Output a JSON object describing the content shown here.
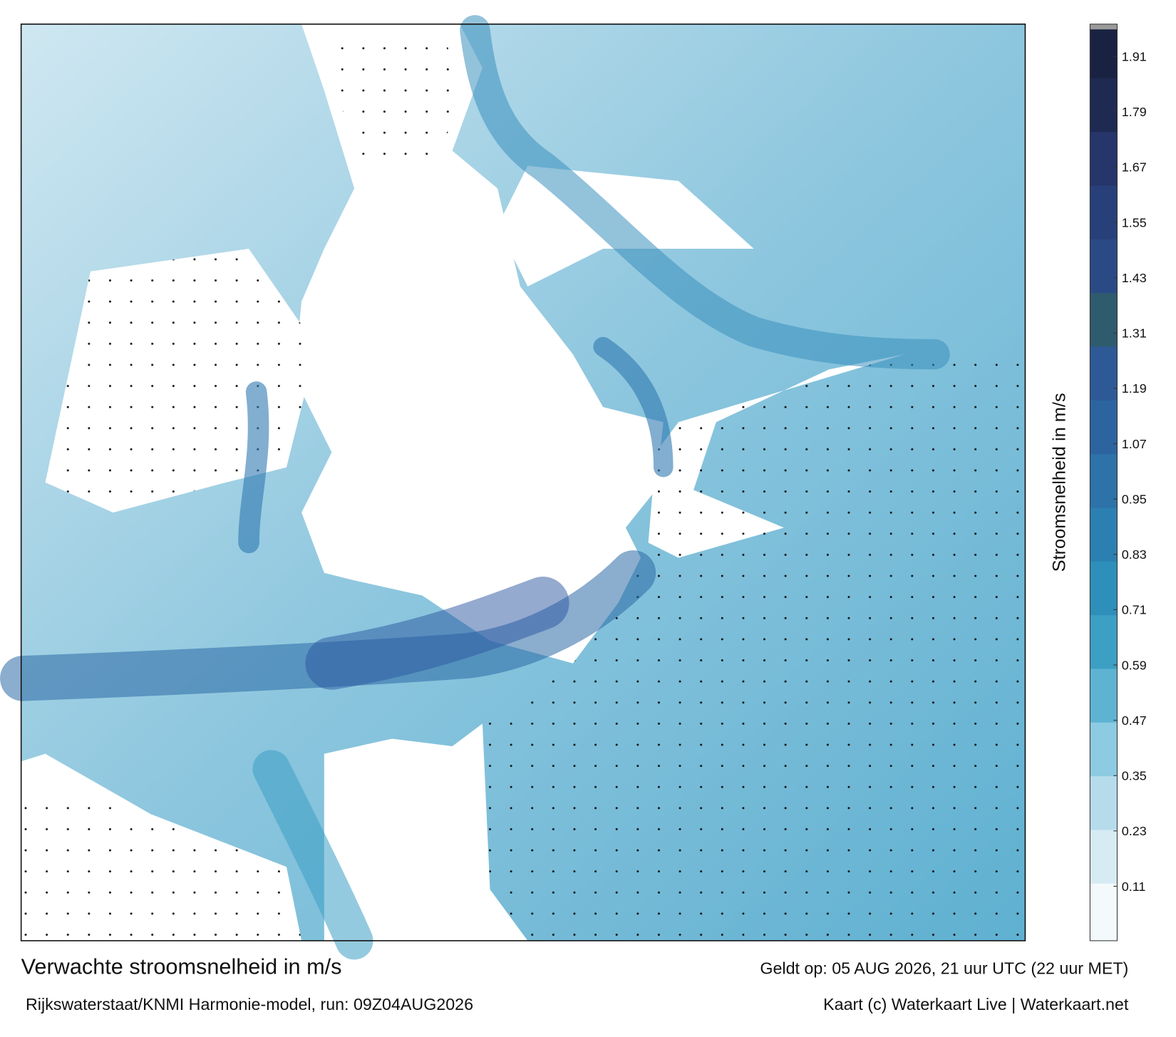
{
  "header": {
    "title": "Verwachte stroomsnelheid in m/s",
    "subtitle": "Rijkswaterstaat/KNMI Harmonie-model, run: 09Z04AUG2026",
    "valid": "Geldt op: 05 AUG 2026, 21 uur UTC (22 uur MET)",
    "credit": "Kaart (c) Waterkaart Live | Waterkaart.net"
  },
  "colorbar": {
    "label": "Stroomsnelheid in m/s",
    "lim": [
      0,
      1.98
    ],
    "ticks": [
      0.11,
      0.23,
      0.35,
      0.47,
      0.59,
      0.71,
      0.83,
      0.95,
      1.07,
      1.19,
      1.31,
      1.43,
      1.55,
      1.67,
      1.79,
      1.91
    ],
    "colors": [
      "#f4fafc",
      "#d6ebf3",
      "#b6dcec",
      "#8ccbe1",
      "#5eb3d2",
      "#3c9fc4",
      "#2d8fba",
      "#2c80b1",
      "#2d72a8",
      "#2c64a0",
      "#2d5a97",
      "#2f5b6e",
      "#2a4a86",
      "#28407a",
      "#26356a",
      "#1f2a52",
      "#1a2242"
    ]
  }
}
